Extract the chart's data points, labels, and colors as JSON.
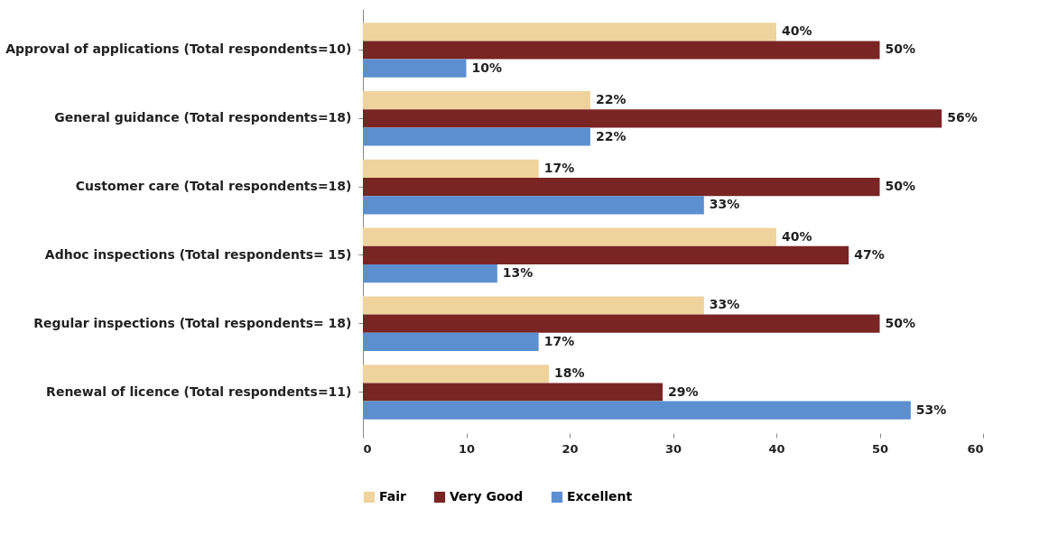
{
  "chart_data": {
    "type": "bar",
    "orientation": "horizontal",
    "categories": [
      "Approval of applications (Total respondents=10)",
      "General guidance (Total respondents=18)",
      "Customer care (Total respondents=18)",
      "Adhoc inspections (Total respondents= 15)",
      "Regular inspections (Total respondents= 18)",
      "Renewal of licence (Total respondents=11)"
    ],
    "series": [
      {
        "name": "Fair",
        "color": "#efd39c",
        "values": [
          40,
          22,
          17,
          40,
          33,
          18
        ],
        "value_labels": [
          "40%",
          "22%",
          "17%",
          "40%",
          "33%",
          "18%"
        ]
      },
      {
        "name": "Very Good",
        "color": "#7a2424",
        "values": [
          50,
          56,
          50,
          47,
          50,
          29
        ],
        "value_labels": [
          "50%",
          "56%",
          "50%",
          "47%",
          "50%",
          "29%"
        ]
      },
      {
        "name": "Excellent",
        "color": "#5b8fd0",
        "values": [
          10,
          22,
          33,
          13,
          17,
          53
        ],
        "value_labels": [
          "10%",
          "22%",
          "33%",
          "13%",
          "17%",
          "53%"
        ]
      }
    ],
    "xlim": [
      0,
      60
    ],
    "xticks": [
      0,
      10,
      20,
      30,
      40,
      50,
      60
    ],
    "grid": false,
    "legend": "bottom"
  }
}
